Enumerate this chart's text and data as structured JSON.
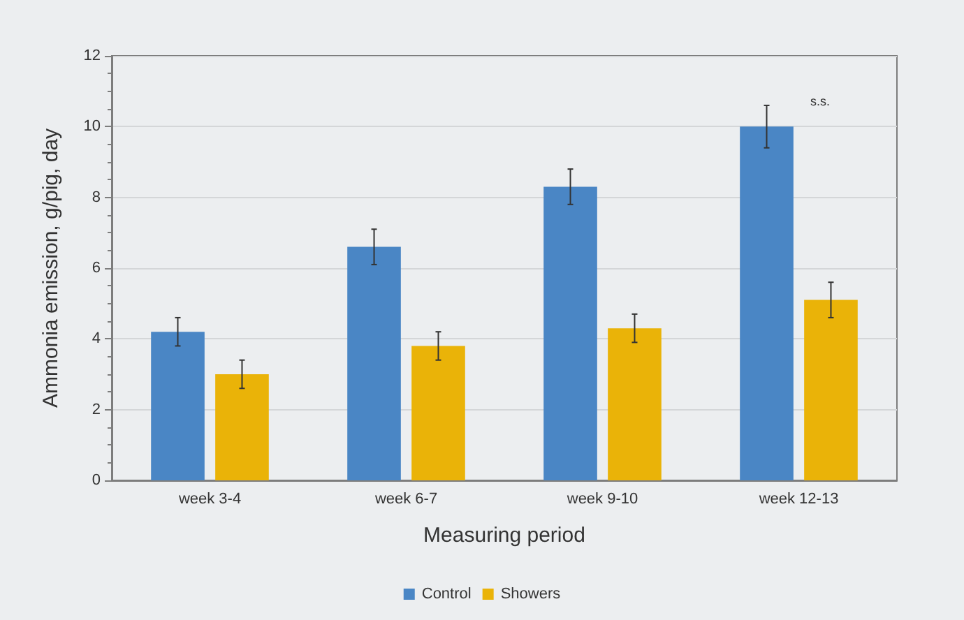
{
  "chart_data": {
    "type": "bar",
    "xlabel": "Measuring period",
    "ylabel": "Ammonia emission, g/pig, day",
    "categories": [
      "week 3-4",
      "week 6-7",
      "week 9-10",
      "week 12-13"
    ],
    "series": [
      {
        "name": "Control",
        "color": "#4a86c5",
        "values": [
          4.2,
          6.6,
          8.3,
          10.0
        ],
        "errors": [
          0.4,
          0.5,
          0.5,
          0.6
        ]
      },
      {
        "name": "Showers",
        "color": "#eab308",
        "values": [
          3.0,
          3.8,
          4.3,
          5.1
        ],
        "errors": [
          0.4,
          0.4,
          0.4,
          0.5
        ]
      }
    ],
    "annotations": [
      "s.s."
    ],
    "ylim": [
      0,
      12
    ],
    "yticks": [
      0,
      2,
      4,
      6,
      8,
      10,
      12
    ],
    "grid": "y",
    "legend": "bottom"
  }
}
